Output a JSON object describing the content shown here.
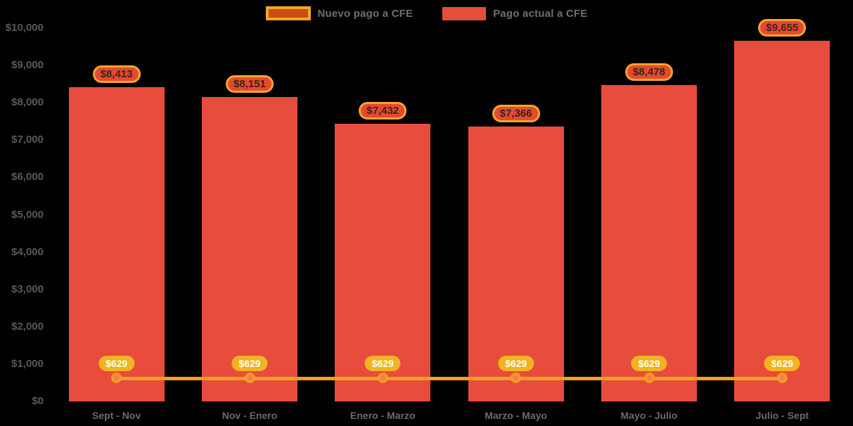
{
  "legend": {
    "items": [
      {
        "label": "Nuevo pago a CFE",
        "swatch_fill": "#C94E0D",
        "swatch_border": "#F5A623"
      },
      {
        "label": "Pago actual a CFE",
        "swatch_fill": "#E74C3C",
        "swatch_border": "#E74C3C"
      }
    ]
  },
  "chart_data": {
    "type": "bar",
    "subtype": "bar+line combo",
    "categories": [
      "Sept - Nov",
      "Nov - Enero",
      "Enero - Marzo",
      "Marzo - Mayo",
      "Mayo - Julio",
      "Julio - Sept"
    ],
    "series": [
      {
        "name": "Pago actual a CFE",
        "type": "bar",
        "color": "#E74C3C",
        "values": [
          8413,
          8151,
          7432,
          7366,
          8478,
          9655
        ],
        "labels": [
          "$8,413",
          "$8,151",
          "$7,432",
          "$7,366",
          "$8,478",
          "$9,655"
        ]
      },
      {
        "name": "Nuevo pago a CFE",
        "type": "line",
        "color": "#F49D1E",
        "values": [
          629,
          629,
          629,
          629,
          629,
          629
        ],
        "labels": [
          "$629",
          "$629",
          "$629",
          "$629",
          "$629",
          "$629"
        ]
      }
    ],
    "yticks": [
      {
        "label": "$0",
        "value": 0
      },
      {
        "label": "$1,000",
        "value": 1000
      },
      {
        "label": "$2,000",
        "value": 2000
      },
      {
        "label": "$3,000",
        "value": 3000
      },
      {
        "label": "$4,000",
        "value": 4000
      },
      {
        "label": "$5,000",
        "value": 5000
      },
      {
        "label": "$6,000",
        "value": 6000
      },
      {
        "label": "$7,000",
        "value": 7000
      },
      {
        "label": "$8,000",
        "value": 8000
      },
      {
        "label": "$9,000",
        "value": 9000
      },
      {
        "label": "$10,000",
        "value": 10000
      }
    ],
    "ylim": [
      0,
      10000
    ],
    "grid": false,
    "legend_position": "top-center"
  },
  "colors": {
    "background": "#000000",
    "bar": "#E74C3C",
    "line": "#F49D1E",
    "marker_ring": "#F49D1E",
    "marker_core": "#F4796B",
    "value_pill_fill": "#E6492F",
    "value_pill_border": "#F2A52B",
    "value_pill_text": "#3A241E",
    "line_pill_fill": "#EFB421",
    "line_pill_text": "#FFFFFF",
    "ytick_text": "#595959",
    "xtick_text": "#6B6B6B",
    "legend_text": "#6F6F6F"
  }
}
